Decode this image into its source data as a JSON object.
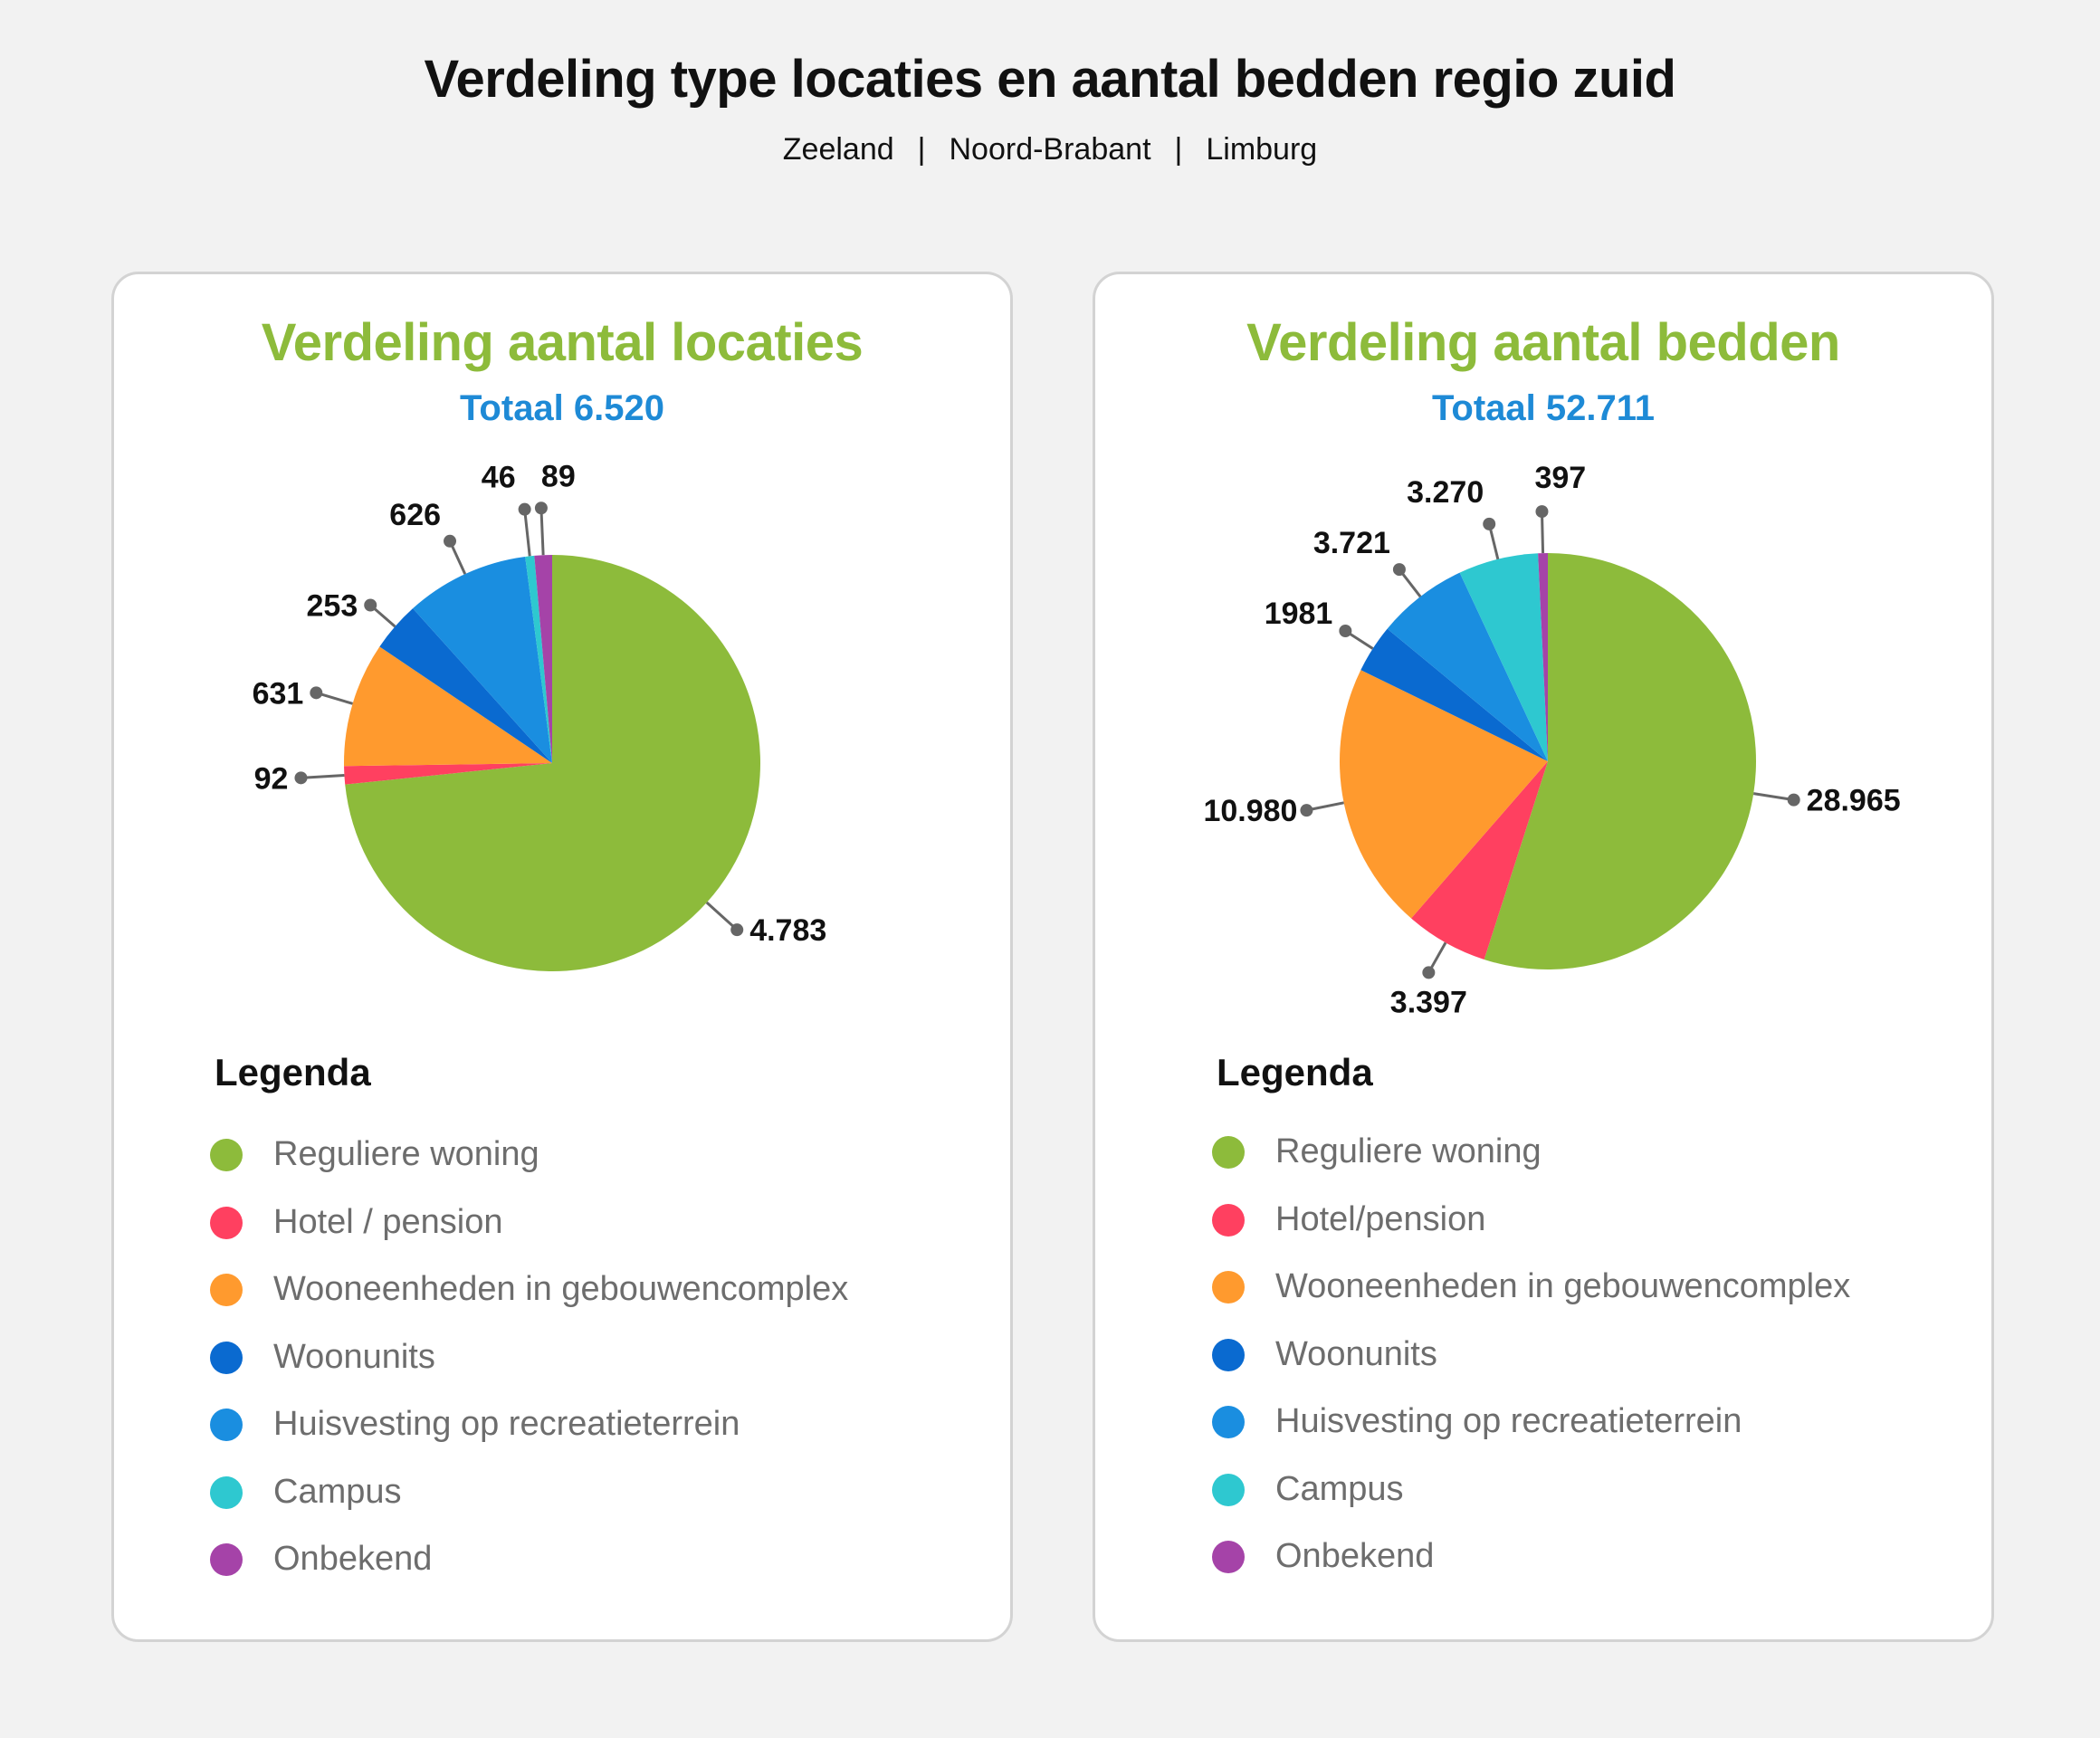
{
  "header": {
    "title": "Verdeling type locaties en aantal bedden regio zuid",
    "regions": [
      "Zeeland",
      "Noord-Brabant",
      "Limburg"
    ],
    "separator": "|"
  },
  "colors": {
    "green": "#8dbb3b",
    "red": "#ff4060",
    "orange": "#ff9a2e",
    "darkblue": "#0a6ad0",
    "blue": "#1a8ee0",
    "cyan": "#2ec8d0",
    "purple": "#a543a8"
  },
  "chart_data": [
    {
      "type": "pie",
      "title": "Verdeling aantal locaties",
      "subtitle": "Totaal 6.520",
      "categories": [
        "Reguliere woning",
        "Hotel / pension",
        "Wooneenheden in gebouwencomplex",
        "Woonunits",
        "Huisvesting op recreatieterrein",
        "Campus",
        "Onbekend"
      ],
      "values": [
        4783,
        92,
        631,
        253,
        626,
        46,
        89
      ],
      "data_labels": [
        "4.783",
        "92",
        "631",
        "253",
        "626",
        "46",
        "89"
      ],
      "colors": [
        "#8dbb3b",
        "#ff4060",
        "#ff9a2e",
        "#0a6ad0",
        "#1a8ee0",
        "#2ec8d0",
        "#a543a8"
      ],
      "legend_title": "Legenda",
      "legend": [
        "Reguliere woning",
        "Hotel / pension",
        "Wooneenheden in gebouwencomplex",
        "Woonunits",
        "Huisvesting op recreatieterrein",
        "Campus",
        "Onbekend"
      ]
    },
    {
      "type": "pie",
      "title": "Verdeling aantal bedden",
      "subtitle": "Totaal 52.711",
      "categories": [
        "Reguliere woning",
        "Hotel/pension",
        "Wooneenheden in gebouwencomplex",
        "Woonunits",
        "Huisvesting op recreatieterrein",
        "Campus",
        "Onbekend"
      ],
      "values": [
        28965,
        3397,
        10980,
        1981,
        3721,
        3270,
        397
      ],
      "data_labels": [
        "28.965",
        "3.397",
        "10.980",
        "1981",
        "3.721",
        "3.270",
        "397"
      ],
      "colors": [
        "#8dbb3b",
        "#ff4060",
        "#ff9a2e",
        "#0a6ad0",
        "#1a8ee0",
        "#2ec8d0",
        "#a543a8"
      ],
      "legend_title": "Legenda",
      "legend": [
        "Reguliere woning",
        "Hotel/pension",
        "Wooneenheden in gebouwencomplex",
        "Woonunits",
        "Huisvesting op recreatieterrein",
        "Campus",
        "Onbekend"
      ]
    }
  ]
}
